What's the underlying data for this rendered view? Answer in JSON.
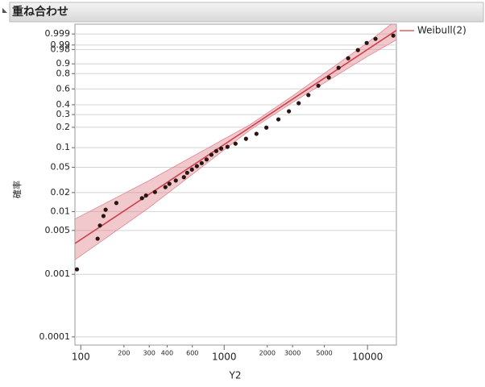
{
  "header": {
    "title": "重ね合わせ"
  },
  "chart_data": {
    "type": "probability",
    "xscale": "log",
    "yscale": "weibull",
    "x_label": "Y2",
    "y_label": "確率",
    "xlim": [
      91,
      15900
    ],
    "ylim": [
      7.4e-05,
      0.99995
    ],
    "xticks": [
      100,
      200,
      300,
      400,
      600,
      1000,
      2000,
      3000,
      5000,
      10000
    ],
    "yticks": [
      0.0001,
      0.001,
      0.005,
      0.01,
      0.02,
      0.05,
      0.1,
      0.2,
      0.3,
      0.4,
      0.6,
      0.8,
      0.9,
      0.98,
      0.99,
      0.999
    ],
    "grid": true,
    "points": {
      "color": "#2b1414",
      "x": [
        94,
        131,
        136,
        144,
        149,
        177,
        267,
        285,
        329,
        389,
        415,
        460,
        524,
        552,
        596,
        645,
        697,
        754,
        815,
        881,
        953,
        1055,
        1200,
        1420,
        1680,
        1970,
        2390,
        2830,
        3310,
        3870,
        4540,
        5370,
        6280,
        7330,
        8570,
        9870,
        11370,
        15130
      ],
      "values": [
        0.0012,
        0.0037,
        0.006,
        0.0085,
        0.0107,
        0.0137,
        0.0163,
        0.018,
        0.0204,
        0.0244,
        0.0275,
        0.031,
        0.035,
        0.041,
        0.046,
        0.052,
        0.058,
        0.066,
        0.078,
        0.089,
        0.097,
        0.103,
        0.115,
        0.136,
        0.161,
        0.198,
        0.258,
        0.331,
        0.418,
        0.518,
        0.643,
        0.752,
        0.863,
        0.941,
        0.978,
        0.993,
        0.9969,
        0.9985
      ]
    },
    "series": [
      {
        "name": "Weibull(2)",
        "color": "#d0404a",
        "x": [
          91,
          15900
        ],
        "values": [
          0.0031,
          0.99963
        ]
      }
    ],
    "band": {
      "color": "#e08890",
      "x": [
        91,
        300,
        1000,
        1500,
        3000,
        10000,
        15900
      ],
      "upper": [
        0.0076,
        0.031,
        0.135,
        0.215,
        0.507,
        0.9934,
        0.99999
      ],
      "lower": [
        0.0017,
        0.0116,
        0.0927,
        0.18,
        0.427,
        0.952,
        0.9962
      ]
    }
  }
}
